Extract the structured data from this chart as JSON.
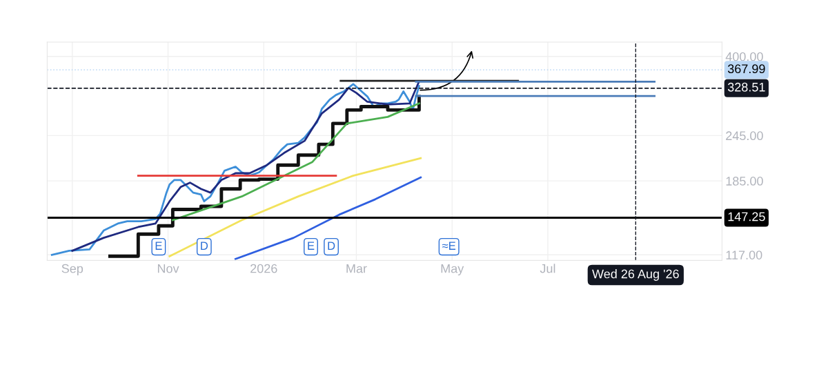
{
  "chart_data": {
    "type": "line",
    "log": true,
    "grid": true,
    "legend": false,
    "marker": "none",
    "xlim": [
      "2025-08-16",
      "2026-10-20"
    ],
    "xticks": [
      {
        "value": "2025-09-01",
        "label": "Sep"
      },
      {
        "value": "2025-11-01",
        "label": "Nov"
      },
      {
        "value": "2026-01-01",
        "label": "2026"
      },
      {
        "value": "2026-03-01",
        "label": "Mar"
      },
      {
        "value": "2026-05-01",
        "label": "May"
      },
      {
        "value": "2026-07-01",
        "label": "Jul"
      }
    ],
    "ylim": [
      113,
      437
    ],
    "yticks": [
      {
        "value": 117,
        "label": "117.00"
      },
      {
        "value": 185,
        "label": "185.00"
      },
      {
        "value": 245,
        "label": "245.00"
      },
      {
        "value": 400,
        "label": "400.00"
      }
    ],
    "series": [
      {
        "color": "#3d8fd9",
        "x": [
          "2025-08-19",
          "2025-08-30",
          "2025-09-12",
          "2025-09-21",
          "2025-09-30",
          "2025-10-06",
          "2025-10-15",
          "2025-10-24",
          "2025-10-27",
          "2025-10-31",
          "2025-11-02",
          "2025-11-05",
          "2025-11-09",
          "2025-11-13",
          "2025-11-17",
          "2025-11-22",
          "2025-11-24",
          "2025-11-28",
          "2025-12-03",
          "2025-12-07",
          "2025-12-14",
          "2025-12-18",
          "2025-12-23",
          "2025-12-29",
          "2026-01-03",
          "2026-01-07",
          "2026-01-12",
          "2026-01-16",
          "2026-01-23",
          "2026-01-27",
          "2026-01-31",
          "2026-02-04",
          "2026-02-07",
          "2026-02-12",
          "2026-02-16",
          "2026-02-21",
          "2026-02-24",
          "2026-02-27",
          "2026-03-04",
          "2026-03-08",
          "2026-03-12",
          "2026-03-17",
          "2026-03-21",
          "2026-03-26",
          "2026-03-28",
          "2026-03-31",
          "2026-04-04",
          "2026-04-06",
          "2026-04-08",
          "2026-04-10"
        ],
        "values": [
          117,
          120,
          121,
          136,
          142,
          144,
          144,
          146,
          151,
          172,
          181,
          186,
          186,
          179,
          172,
          170,
          163,
          168,
          183,
          197,
          202,
          195,
          191,
          195,
          204,
          211,
          224,
          232,
          234,
          242,
          254,
          266,
          289,
          306,
          315,
          322,
          329,
          337,
          323,
          312,
          293,
          299,
          299,
          302,
          306,
          322,
          302,
          287,
          312,
          333
        ]
      },
      {
        "color": "#1f2a80",
        "x": [
          "2025-09-01",
          "2025-09-21",
          "2025-10-13",
          "2025-10-24",
          "2025-11-02",
          "2025-11-09",
          "2025-11-15",
          "2025-11-22",
          "2025-11-28",
          "2025-12-05",
          "2025-12-14",
          "2025-12-23",
          "2026-01-03",
          "2026-01-14",
          "2026-01-27",
          "2026-02-07",
          "2026-02-18",
          "2026-02-24",
          "2026-03-01",
          "2026-03-08",
          "2026-03-21",
          "2026-04-04",
          "2026-04-10"
        ],
        "values": [
          120,
          130,
          139,
          142,
          163,
          178,
          183,
          176,
          172,
          186,
          194,
          194,
          204,
          220,
          237,
          281,
          306,
          329,
          319,
          302,
          297,
          299,
          343
        ]
      },
      {
        "type": "step",
        "color": "#111111",
        "x": [
          "2025-09-25",
          "2025-10-13",
          "2025-10-26",
          "2025-11-04",
          "2025-11-22",
          "2025-12-05",
          "2025-12-17",
          "2025-12-29",
          "2026-01-10",
          "2026-01-23",
          "2026-02-05",
          "2026-02-14",
          "2026-02-23",
          "2026-03-04",
          "2026-03-21",
          "2026-04-10"
        ],
        "values": [
          116,
          133,
          140,
          155,
          158,
          176,
          186,
          187,
          204,
          217,
          232,
          264,
          287,
          293,
          287,
          312
        ]
      },
      {
        "color": "#4caf50",
        "x": [
          "2025-11-04",
          "2025-12-18",
          "2026-02-01",
          "2026-02-23",
          "2026-03-21",
          "2026-04-10"
        ],
        "values": [
          145,
          168,
          208,
          264,
          275,
          299
        ]
      },
      {
        "color": "#f2e25c",
        "x": [
          "2025-11-02",
          "2025-12-18",
          "2026-01-23",
          "2026-02-27",
          "2026-04-11"
        ],
        "values": [
          116,
          145,
          168,
          191,
          213
        ]
      },
      {
        "color": "#2f5fe0",
        "x": [
          "2025-12-14",
          "2026-01-20",
          "2026-02-18",
          "2026-03-13",
          "2026-04-11"
        ],
        "values": [
          114,
          130,
          150,
          165,
          189
        ]
      },
      {
        "color": "#e53935",
        "x": [
          "2025-10-13",
          "2026-02-16"
        ],
        "values": [
          191,
          191
        ]
      },
      {
        "color": "#222222",
        "x": [
          "2026-02-19",
          "2026-06-12"
        ],
        "values": [
          344,
          344
        ]
      },
      {
        "color": "#4a7bb7",
        "x": [
          "2026-04-08",
          "2026-09-07"
        ],
        "values": [
          342,
          342
        ]
      },
      {
        "color": "#4a7bb7",
        "x": [
          "2026-04-08",
          "2026-09-07"
        ],
        "values": [
          313,
          313
        ]
      }
    ],
    "ref_lines": [
      {
        "axis": "y",
        "value": 367.99,
        "label": "367.99",
        "color": "#bcd8f5",
        "line_style": "dotted"
      },
      {
        "axis": "y",
        "value": 328.51,
        "label": "328.51",
        "color": "#131722",
        "line_style": "dashed"
      },
      {
        "axis": "y",
        "value": 147.25,
        "label": "147.25",
        "color": "#000000",
        "line_style": "solid"
      },
      {
        "axis": "x",
        "value": "2026-08-26",
        "label": "Wed 26 Aug '26",
        "color": "#131722",
        "line_style": "dashed"
      }
    ],
    "annotations": [
      {
        "text": "E",
        "x": "2025-10-26",
        "y": 123
      },
      {
        "text": "D",
        "x": "2025-11-24",
        "y": 123
      },
      {
        "text": "E",
        "x": "2026-01-31",
        "y": 123
      },
      {
        "text": "D",
        "x": "2026-02-13",
        "y": 123
      },
      {
        "text": "≈E",
        "x": "2026-04-29",
        "y": 123
      }
    ]
  }
}
